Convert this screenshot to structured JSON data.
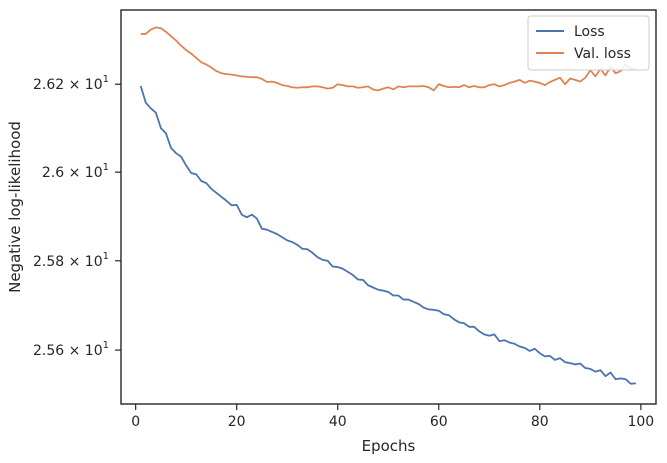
{
  "chart_data": {
    "type": "line",
    "title": "",
    "xlabel": "Epochs",
    "ylabel": "Negative log-likelihood",
    "xlim": [
      -2.9,
      103
    ],
    "ylim": [
      25.48,
      26.37
    ],
    "yscale": "log",
    "grid": false,
    "legend_position": "top-right",
    "x_ticks": [
      0,
      20,
      40,
      60,
      80,
      100
    ],
    "x_tick_labels": [
      "0",
      "20",
      "40",
      "60",
      "80",
      "100"
    ],
    "y_ticks": [
      25.6,
      25.8,
      26.0,
      26.2
    ],
    "y_tick_labels": [
      {
        "mantissa": "2.56",
        "times": "×",
        "base": "10",
        "exp": "1"
      },
      {
        "mantissa": "2.58",
        "times": "×",
        "base": "10",
        "exp": "1"
      },
      {
        "mantissa": "2.6",
        "times": "×",
        "base": "10",
        "exp": "1"
      },
      {
        "mantissa": "2.62",
        "times": "×",
        "base": "10",
        "exp": "1"
      }
    ],
    "series": [
      {
        "name": "Loss",
        "color": "#4c72b0",
        "x": [
          1,
          2,
          3,
          4,
          5,
          6,
          7,
          8,
          9,
          10,
          11,
          12,
          13,
          14,
          15,
          16,
          17,
          18,
          19,
          20,
          21,
          22,
          23,
          24,
          25,
          26,
          27,
          28,
          29,
          30,
          31,
          32,
          33,
          34,
          35,
          36,
          37,
          38,
          39,
          40,
          41,
          42,
          43,
          44,
          45,
          46,
          47,
          48,
          49,
          50,
          51,
          52,
          53,
          54,
          55,
          56,
          57,
          58,
          59,
          60,
          61,
          62,
          63,
          64,
          65,
          66,
          67,
          68,
          69,
          70,
          71,
          72,
          73,
          74,
          75,
          76,
          77,
          78,
          79,
          80,
          81,
          82,
          83,
          84,
          85,
          86,
          87,
          88,
          89,
          90,
          91,
          92,
          93,
          94,
          95,
          96,
          97,
          98,
          99
        ],
        "values": [
          26.196,
          26.158,
          26.145,
          26.135,
          26.1,
          26.088,
          26.055,
          26.043,
          26.035,
          26.015,
          25.998,
          25.995,
          25.98,
          25.975,
          25.962,
          25.953,
          25.944,
          25.935,
          25.925,
          25.926,
          25.904,
          25.898,
          25.904,
          25.895,
          25.872,
          25.87,
          25.865,
          25.86,
          25.853,
          25.846,
          25.842,
          25.836,
          25.827,
          25.826,
          25.818,
          25.808,
          25.802,
          25.8,
          25.787,
          25.786,
          25.782,
          25.775,
          25.768,
          25.758,
          25.757,
          25.745,
          25.74,
          25.735,
          25.733,
          25.73,
          25.722,
          25.722,
          25.713,
          25.713,
          25.708,
          25.703,
          25.695,
          25.691,
          25.69,
          25.688,
          25.68,
          25.678,
          25.669,
          25.662,
          25.66,
          25.652,
          25.652,
          25.642,
          25.635,
          25.632,
          25.635,
          25.62,
          25.622,
          25.617,
          25.614,
          25.608,
          25.605,
          25.598,
          25.603,
          25.593,
          25.586,
          25.587,
          25.578,
          25.582,
          25.573,
          25.571,
          25.568,
          25.57,
          25.56,
          25.558,
          25.552,
          25.555,
          25.542,
          25.55,
          25.535,
          25.537,
          25.535,
          25.525,
          25.526
        ]
      },
      {
        "name": "Val. loss",
        "color": "#dd8452",
        "x": [
          1,
          2,
          3,
          4,
          5,
          6,
          7,
          8,
          9,
          10,
          11,
          12,
          13,
          14,
          15,
          16,
          17,
          18,
          19,
          20,
          21,
          22,
          23,
          24,
          25,
          26,
          27,
          28,
          29,
          30,
          31,
          32,
          33,
          34,
          35,
          36,
          37,
          38,
          39,
          40,
          41,
          42,
          43,
          44,
          45,
          46,
          47,
          48,
          49,
          50,
          51,
          52,
          53,
          54,
          55,
          56,
          57,
          58,
          59,
          60,
          61,
          62,
          63,
          64,
          65,
          66,
          67,
          68,
          69,
          70,
          71,
          72,
          73,
          74,
          75,
          76,
          77,
          78,
          79,
          80,
          81,
          82,
          83,
          84,
          85,
          86,
          87,
          88,
          89,
          90,
          91,
          92,
          93,
          94,
          95,
          96,
          97,
          98,
          99
        ],
        "values": [
          26.315,
          26.315,
          26.325,
          26.33,
          26.328,
          26.32,
          26.31,
          26.3,
          26.288,
          26.278,
          26.27,
          26.26,
          26.25,
          26.245,
          26.238,
          26.23,
          26.225,
          26.223,
          26.222,
          26.22,
          26.218,
          26.217,
          26.216,
          26.216,
          26.212,
          26.205,
          26.206,
          26.203,
          26.198,
          26.196,
          26.193,
          26.192,
          26.193,
          26.193,
          26.195,
          26.195,
          26.193,
          26.19,
          26.192,
          26.2,
          26.198,
          26.195,
          26.195,
          26.192,
          26.193,
          26.195,
          26.188,
          26.186,
          26.19,
          26.193,
          26.188,
          26.195,
          26.193,
          26.195,
          26.195,
          26.195,
          26.196,
          26.193,
          26.186,
          26.2,
          26.196,
          26.193,
          26.194,
          26.193,
          26.198,
          26.193,
          26.196,
          26.193,
          26.193,
          26.198,
          26.2,
          26.195,
          26.198,
          26.203,
          26.206,
          26.21,
          26.203,
          26.208,
          26.206,
          26.203,
          26.198,
          26.205,
          26.21,
          26.215,
          26.2,
          26.213,
          26.21,
          26.206,
          26.215,
          26.232,
          26.218,
          26.235,
          26.22,
          26.24,
          26.225,
          26.23,
          26.245,
          26.235,
          26.235
        ]
      }
    ]
  }
}
